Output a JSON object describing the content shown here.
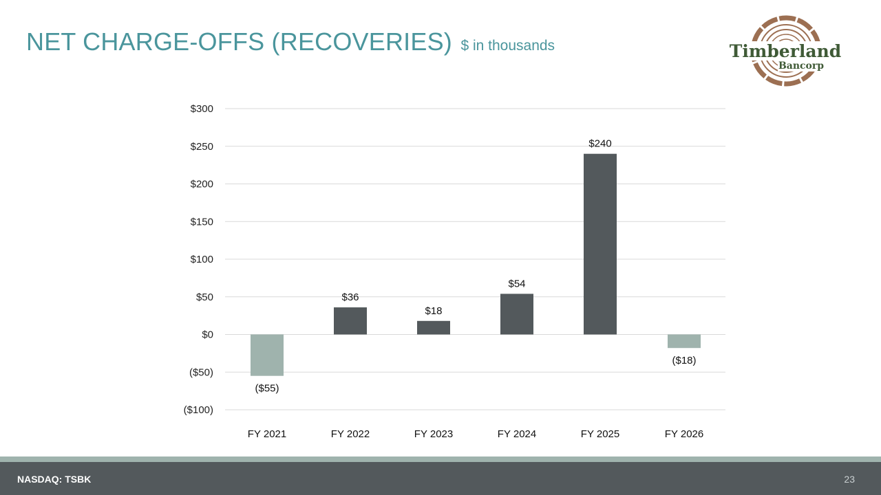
{
  "header": {
    "title": "NET CHARGE-OFFS (RECOVERIES)",
    "subtitle": "$ in thousands"
  },
  "logo": {
    "line1": "Timberland",
    "line2": "Bancorp",
    "colors": {
      "ring": "#9c6f52",
      "text": "#3f5a36"
    }
  },
  "chart_data": {
    "type": "bar",
    "title": "NET CHARGE-OFFS (RECOVERIES)",
    "subtitle": "$ in thousands",
    "xlabel": "",
    "ylabel": "",
    "categories": [
      "FY 2021",
      "FY 2022",
      "FY 2023",
      "FY 2024",
      "FY 2025",
      "FY 2026"
    ],
    "values": [
      -55,
      36,
      18,
      54,
      240,
      -18
    ],
    "value_labels": [
      "($55)",
      "$36",
      "$18",
      "$54",
      "$240",
      "($18)"
    ],
    "ylim": [
      -100,
      300
    ],
    "yticks": [
      300,
      250,
      200,
      150,
      100,
      50,
      0,
      -50,
      -100
    ],
    "ytick_labels": [
      "$300",
      "$250",
      "$200",
      "$150",
      "$100",
      "$50",
      "$0",
      "($50)",
      "($100)"
    ],
    "grid": true,
    "colors": {
      "positive": "#53595c",
      "negative": "#9fb3ad"
    }
  },
  "footer": {
    "ticker": "NASDAQ: TSBK",
    "page_number": "23"
  }
}
